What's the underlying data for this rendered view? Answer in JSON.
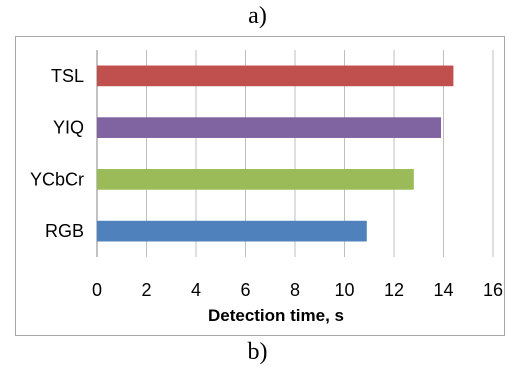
{
  "captions": {
    "top": "a)",
    "bottom": "b)"
  },
  "chart_data": {
    "type": "bar",
    "orientation": "horizontal",
    "categories": [
      "TSL",
      "YIQ",
      "YCbCr",
      "RGB"
    ],
    "values": [
      14.4,
      13.9,
      12.8,
      10.9
    ],
    "colors": [
      "#c0504d",
      "#8064a2",
      "#9bbb59",
      "#4f81bd"
    ],
    "xlabel": "Detection time, s",
    "xlim": [
      0,
      16
    ],
    "xticks": [
      0,
      2,
      4,
      6,
      8,
      10,
      12,
      14,
      16
    ],
    "grid": "vertical"
  }
}
